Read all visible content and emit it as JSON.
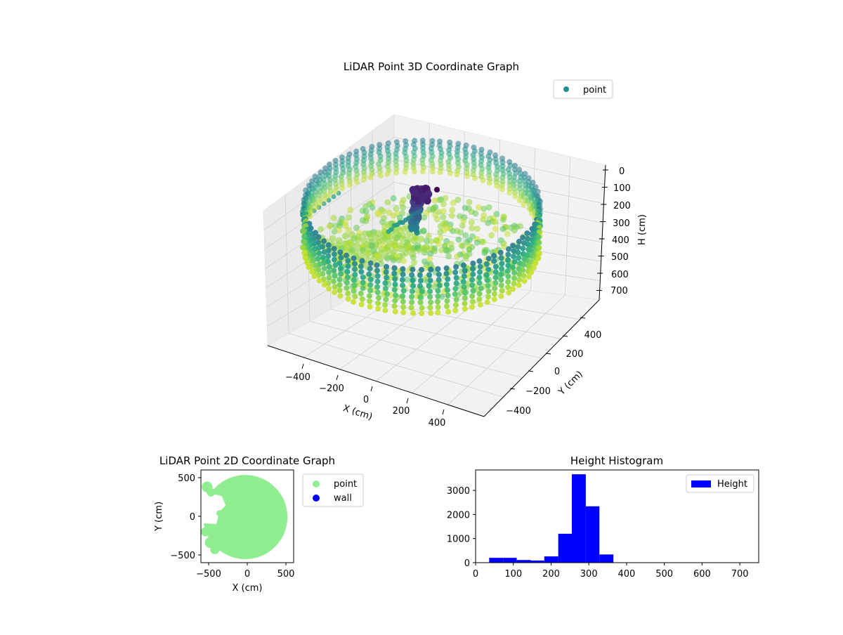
{
  "colors": {
    "viridis": [
      "#440154",
      "#472c7a",
      "#3b518b",
      "#2c718e",
      "#21908d",
      "#27ad81",
      "#5cc863",
      "#aadc32",
      "#fde725"
    ],
    "point_legend": "#21908d",
    "scatter2d": "#90ee90",
    "wall": "#0000ff",
    "hist": "#0000ff",
    "pane": "#f2f2f2",
    "pane_side": "#ebebeb",
    "grid": "#d0d0d0"
  },
  "chart_data": [
    {
      "type": "scatter",
      "projection": "3d",
      "title": "LiDAR Point 3D Coordinate Graph",
      "xlabel": "X (cm)",
      "ylabel": "Y (cm)",
      "zlabel": "H (cm)",
      "xticks": [
        "−400",
        "−200",
        "0",
        "200",
        "400"
      ],
      "yticks": [
        "400",
        "200",
        "0",
        "−200",
        "−400"
      ],
      "zticks": [
        "0",
        "100",
        "200",
        "300",
        "400",
        "500",
        "600",
        "700"
      ],
      "zlim": [
        700,
        0
      ],
      "legend": [
        "point"
      ],
      "legend_loc": "upper right",
      "grid": true,
      "colormap": "viridis",
      "approx_shape": "ring of points radius ~550 cm at height ~250-350 cm with central mast rising toward 0 cm"
    },
    {
      "type": "scatter",
      "title": "LiDAR Point 2D Coordinate Graph",
      "xlabel": "X (cm)",
      "ylabel": "Y (cm)",
      "xticks": [
        "−500",
        "0",
        "500"
      ],
      "yticks": [
        "500",
        "0",
        "−500"
      ],
      "xlim": [
        -600,
        600
      ],
      "ylim": [
        -600,
        600
      ],
      "legend": [
        "point",
        "wall"
      ],
      "legend_loc": "outside right",
      "series": [
        {
          "name": "point",
          "color": "#90ee90",
          "approx_shape": "filled disc radius ~520 cm centered near (-30,-20) with notch on left side"
        },
        {
          "name": "wall",
          "color": "#0000ff",
          "values": []
        }
      ]
    },
    {
      "type": "bar",
      "title": "Height Histogram",
      "legend": [
        "Height"
      ],
      "legend_loc": "upper right",
      "xticks": [
        "0",
        "100",
        "200",
        "300",
        "400",
        "500",
        "600",
        "700"
      ],
      "yticks": [
        "0",
        "1000",
        "2000",
        "3000"
      ],
      "xlim": [
        0,
        750
      ],
      "ylim": [
        0,
        3850
      ],
      "bins": [
        {
          "x0": 36,
          "x1": 73,
          "v": 200
        },
        {
          "x0": 73,
          "x1": 109,
          "v": 200
        },
        {
          "x0": 109,
          "x1": 146,
          "v": 110
        },
        {
          "x0": 146,
          "x1": 182,
          "v": 90
        },
        {
          "x0": 182,
          "x1": 219,
          "v": 260
        },
        {
          "x0": 219,
          "x1": 255,
          "v": 1200
        },
        {
          "x0": 255,
          "x1": 292,
          "v": 3670
        },
        {
          "x0": 292,
          "x1": 328,
          "v": 2340
        },
        {
          "x0": 328,
          "x1": 365,
          "v": 340
        },
        {
          "x0": 365,
          "x1": 401,
          "v": 0
        },
        {
          "x0": 401,
          "x1": 438,
          "v": 0
        },
        {
          "x0": 438,
          "x1": 474,
          "v": 0
        },
        {
          "x0": 474,
          "x1": 511,
          "v": 0
        },
        {
          "x0": 511,
          "x1": 547,
          "v": 0
        },
        {
          "x0": 547,
          "x1": 584,
          "v": 0
        },
        {
          "x0": 584,
          "x1": 620,
          "v": 0
        },
        {
          "x0": 620,
          "x1": 657,
          "v": 0
        },
        {
          "x0": 657,
          "x1": 693,
          "v": 0
        },
        {
          "x0": 693,
          "x1": 730,
          "v": 0
        }
      ]
    }
  ]
}
